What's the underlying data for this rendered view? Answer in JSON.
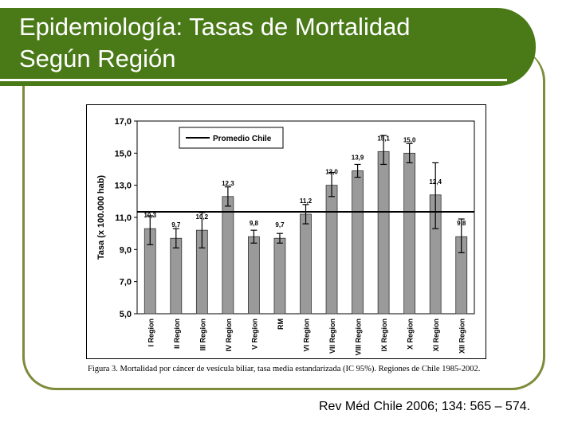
{
  "slide": {
    "title_line1": "Epidemiología: Tasas de Mortalidad",
    "title_line2": "Según Región",
    "caption": "Figura 3. Mortalidad por cáncer de vesícula biliar, tasa media estandarizada (IC 95%). Regiones de Chile 1985-2002.",
    "citation": "Rev Méd Chile 2006; 134: 565 – 574."
  },
  "colors": {
    "title_bg": "#4a7a18",
    "frame": "#7d8c3a",
    "bar_fill": "#9a9a9a"
  },
  "chart_data": {
    "type": "bar",
    "title": "",
    "xlabel": "",
    "ylabel": "Tasa (x 100.000 hab)",
    "ylim": [
      5.0,
      17.0
    ],
    "yticks": [
      "5,0",
      "7,0",
      "9,0",
      "11,0",
      "13,0",
      "15,0",
      "17,0"
    ],
    "categories": [
      "I Region",
      "II Region",
      "III Region",
      "IV Region",
      "V Region",
      "RM",
      "VI Region",
      "VII Region",
      "VIII Region",
      "IX Region",
      "X Region",
      "XI Region",
      "XII Region"
    ],
    "values": [
      10.3,
      9.7,
      10.2,
      12.3,
      9.8,
      9.7,
      11.2,
      13.0,
      13.9,
      15.1,
      15.0,
      12.4,
      9.8
    ],
    "value_labels": [
      "10,3",
      "9,7",
      "10,2",
      "12,3",
      "9,8",
      "9,7",
      "11,2",
      "13,0",
      "13,9",
      "15,1",
      "15,0",
      "12,4",
      "9,8"
    ],
    "ci_lower": [
      9.3,
      9.1,
      9.1,
      11.7,
      9.4,
      9.4,
      10.6,
      12.3,
      13.5,
      14.3,
      14.4,
      10.3,
      8.8
    ],
    "ci_upper": [
      11.1,
      10.3,
      11.3,
      12.9,
      10.2,
      10.0,
      11.8,
      13.8,
      14.3,
      16.1,
      15.6,
      14.4,
      10.9
    ],
    "reference_line": {
      "name": "Promedio Chile",
      "value": 11.35
    },
    "legend": {
      "entries": [
        "Promedio Chile"
      ],
      "placement": "top-left"
    },
    "grid": false
  }
}
